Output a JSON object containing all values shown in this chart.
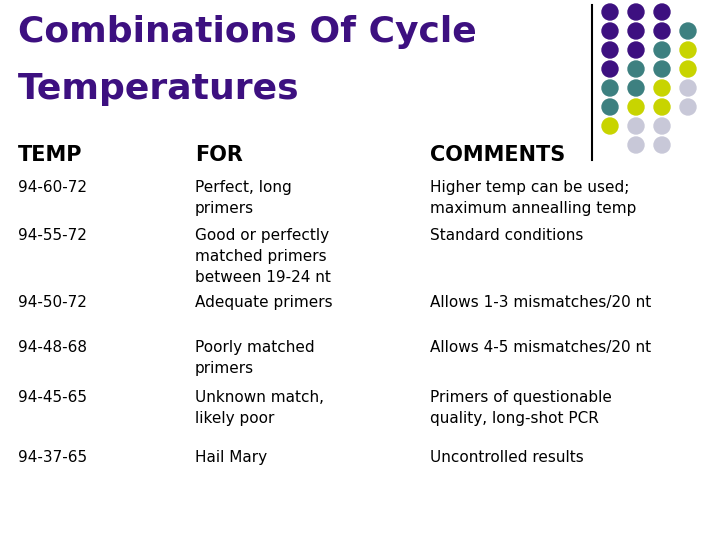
{
  "title_line1": "Combinations Of Cycle",
  "title_line2": "Temperatures",
  "title_color": "#3d1080",
  "bg_color": "#ffffff",
  "header": [
    "TEMP",
    "FOR",
    "COMMENTS"
  ],
  "rows": [
    {
      "temp": "94-60-72",
      "for": "Perfect, long\nprimers",
      "comments": "Higher temp can be used;\nmaximum annealling temp"
    },
    {
      "temp": "94-55-72",
      "for": "Good or perfectly\nmatched primers\nbetween 19-24 nt",
      "comments": "Standard conditions"
    },
    {
      "temp": "94-50-72",
      "for": "Adequate primers",
      "comments": "Allows 1-3 mismatches/20 nt"
    },
    {
      "temp": "94-48-68",
      "for": "Poorly matched\nprimers",
      "comments": "Allows 4-5 mismatches/20 nt"
    },
    {
      "temp": "94-45-65",
      "for": "Unknown match,\nlikely poor",
      "comments": "Primers of questionable\nquality, long-shot PCR"
    },
    {
      "temp": "94-37-65",
      "for": "Hail Mary",
      "comments": "Uncontrolled results"
    }
  ],
  "dot_grid": [
    [
      "p",
      "p",
      "p",
      ""
    ],
    [
      "p",
      "p",
      "p",
      "t"
    ],
    [
      "p",
      "p",
      "t",
      "y"
    ],
    [
      "p",
      "t",
      "t",
      "y"
    ],
    [
      "t",
      "t",
      "y",
      "l"
    ],
    [
      "t",
      "y",
      "y",
      "l"
    ],
    [
      "y",
      "l",
      "l",
      ""
    ],
    [
      "",
      "l",
      "l",
      ""
    ]
  ],
  "dot_colors": {
    "p": "#3d1080",
    "t": "#3d8080",
    "y": "#c8d400",
    "l": "#c8c8d8"
  },
  "text_color": "#000000",
  "header_text_color": "#000000",
  "line_color": "#000000"
}
